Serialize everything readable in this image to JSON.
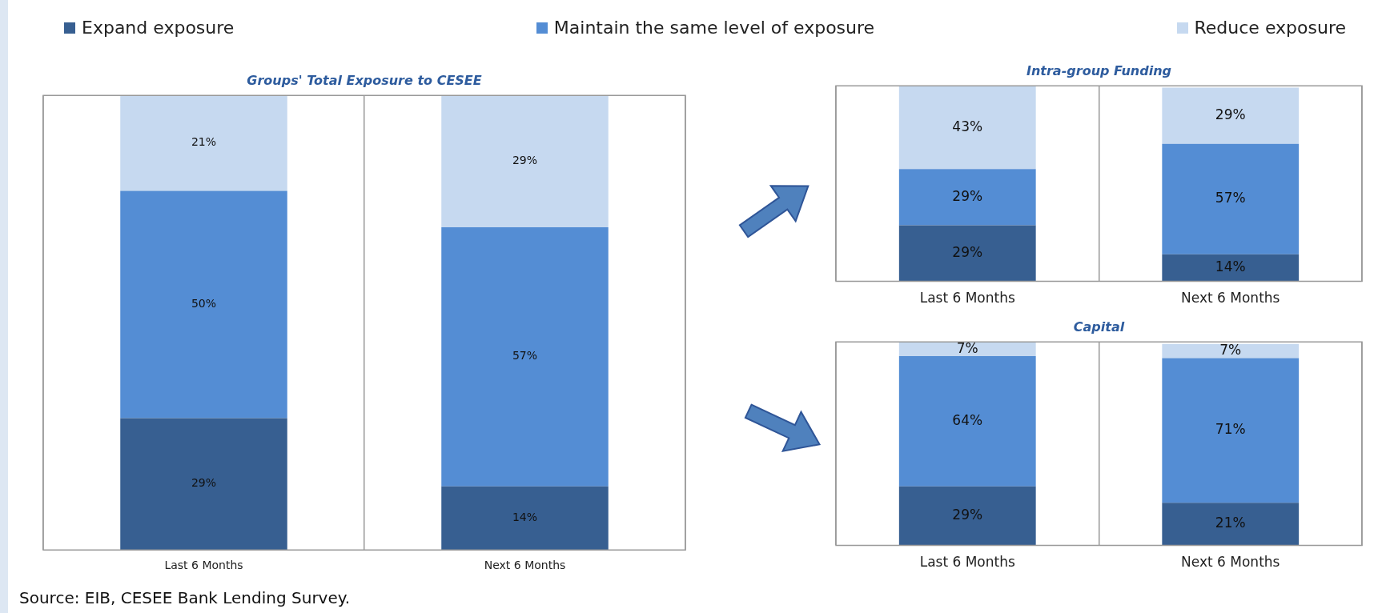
{
  "chart_data": [
    {
      "type": "bar",
      "title": "Groups' Total Exposure to CESEE",
      "categories": [
        "Last 6 Months",
        "Next 6 Months"
      ],
      "stacked": true,
      "legend": "top",
      "annotations": [
        "Source: EIB, CESEE Bank Lending Survey."
      ],
      "series": [
        {
          "name": "Expand exposure",
          "color": "#375f91",
          "values": [
            29,
            14
          ],
          "value_labels": [
            "29%",
            "14%"
          ]
        },
        {
          "name": "Maintain the same level of exposure",
          "color": "#548dd4",
          "values": [
            50,
            57
          ],
          "value_labels": [
            "50%",
            "57%"
          ]
        },
        {
          "name": "Reduce exposure",
          "color": "#c6d9f0",
          "values": [
            21,
            29
          ],
          "value_labels": [
            "21%",
            "29%"
          ]
        }
      ]
    },
    {
      "type": "bar",
      "title": "Intra-group Funding",
      "categories": [
        "Last 6 Months",
        "Next 6 Months"
      ],
      "stacked": true,
      "series": [
        {
          "color": "#375f91",
          "values": [
            29,
            14
          ],
          "value_labels": [
            "29%",
            "14%"
          ]
        },
        {
          "color": "#548dd4",
          "values": [
            29,
            57
          ],
          "value_labels": [
            "29%",
            "57%"
          ]
        },
        {
          "color": "#c6d9f0",
          "values": [
            43,
            29
          ],
          "value_labels": [
            "43%",
            "29%"
          ]
        }
      ]
    },
    {
      "type": "bar",
      "title": "Capital",
      "categories": [
        "Last 6 Months",
        "Next 6 Months"
      ],
      "stacked": true,
      "series": [
        {
          "color": "#375f91",
          "values": [
            29,
            21
          ],
          "value_labels": [
            "29%",
            "21%"
          ]
        },
        {
          "color": "#548dd4",
          "values": [
            64,
            71
          ],
          "value_labels": [
            "64%",
            "71%"
          ]
        },
        {
          "color": "#c6d9f0",
          "values": [
            7,
            7
          ],
          "value_labels": [
            "7%",
            "7%"
          ]
        }
      ]
    }
  ]
}
